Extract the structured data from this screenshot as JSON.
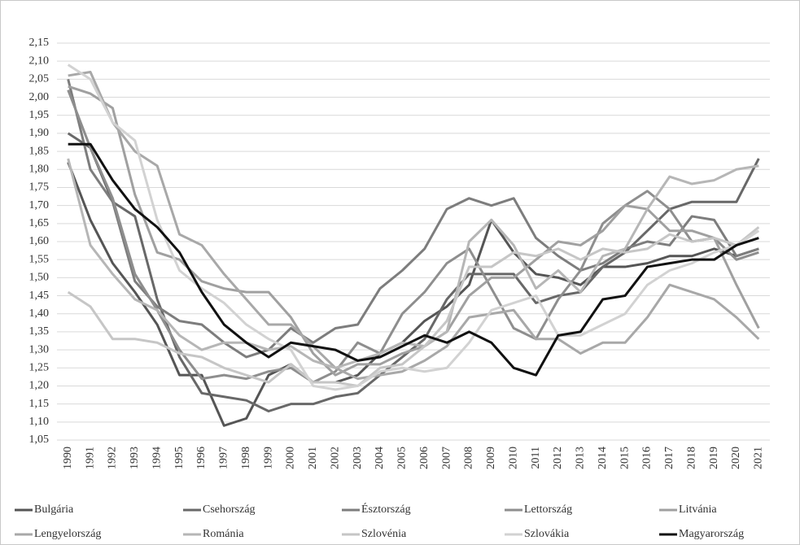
{
  "chart_data": {
    "type": "line",
    "categories": [
      "1990",
      "1991",
      "1992",
      "1993",
      "1994",
      "1995",
      "1996",
      "1997",
      "1998",
      "1999",
      "2000",
      "2001",
      "2002",
      "2003",
      "2004",
      "2005",
      "2006",
      "2007",
      "2008",
      "2009",
      "2010",
      "2011",
      "2012",
      "2013",
      "2014",
      "2015",
      "2016",
      "2017",
      "2018",
      "2019",
      "2020",
      "2021"
    ],
    "ylim": [
      1.05,
      2.15
    ],
    "yticks": [
      {
        "value": 1.05,
        "label": "1,05"
      },
      {
        "value": 1.1,
        "label": "1,10"
      },
      {
        "value": 1.15,
        "label": "1,15"
      },
      {
        "value": 1.2,
        "label": "1,20"
      },
      {
        "value": 1.25,
        "label": "1,25"
      },
      {
        "value": 1.3,
        "label": "1,30"
      },
      {
        "value": 1.35,
        "label": "1,35"
      },
      {
        "value": 1.4,
        "label": "1,40"
      },
      {
        "value": 1.45,
        "label": "1,45"
      },
      {
        "value": 1.5,
        "label": "1,50"
      },
      {
        "value": 1.55,
        "label": "1,55"
      },
      {
        "value": 1.6,
        "label": "1,60"
      },
      {
        "value": 1.65,
        "label": "1,65"
      },
      {
        "value": 1.7,
        "label": "1,70"
      },
      {
        "value": 1.75,
        "label": "1,75"
      },
      {
        "value": 1.8,
        "label": "1,80"
      },
      {
        "value": 1.85,
        "label": "1,85"
      },
      {
        "value": 1.9,
        "label": "1,90"
      },
      {
        "value": 1.95,
        "label": "1,95"
      },
      {
        "value": 2.0,
        "label": "2,00"
      },
      {
        "value": 2.05,
        "label": "2,05"
      },
      {
        "value": 2.1,
        "label": "2,10"
      },
      {
        "value": 2.15,
        "label": "2,15"
      }
    ],
    "grid": true,
    "legend": "bottom",
    "series": [
      {
        "name": "Bulgária",
        "color": "#555555",
        "values": [
          1.82,
          1.66,
          1.54,
          1.46,
          1.37,
          1.23,
          1.23,
          1.09,
          1.11,
          1.23,
          1.26,
          1.21,
          1.21,
          1.23,
          1.29,
          1.32,
          1.38,
          1.42,
          1.48,
          1.66,
          1.57,
          1.51,
          1.5,
          1.48,
          1.53,
          1.53,
          1.54,
          1.56,
          1.56,
          1.58,
          1.56,
          1.58
        ]
      },
      {
        "name": "Csehország",
        "color": "#686868",
        "values": [
          1.9,
          1.86,
          1.71,
          1.67,
          1.44,
          1.28,
          1.18,
          1.17,
          1.16,
          1.13,
          1.15,
          1.15,
          1.17,
          1.18,
          1.23,
          1.28,
          1.33,
          1.44,
          1.51,
          1.51,
          1.51,
          1.43,
          1.45,
          1.46,
          1.53,
          1.57,
          1.63,
          1.69,
          1.71,
          1.71,
          1.71,
          1.83
        ]
      },
      {
        "name": "Észtország",
        "color": "#7d7d7d",
        "values": [
          2.05,
          1.8,
          1.71,
          1.49,
          1.42,
          1.38,
          1.37,
          1.32,
          1.28,
          1.3,
          1.36,
          1.32,
          1.36,
          1.37,
          1.47,
          1.52,
          1.58,
          1.69,
          1.72,
          1.7,
          1.72,
          1.61,
          1.56,
          1.52,
          1.54,
          1.58,
          1.6,
          1.59,
          1.67,
          1.66,
          1.56,
          1.58
        ]
      },
      {
        "name": "Lettország",
        "color": "#8e8e8e",
        "values": [
          2.02,
          1.86,
          1.72,
          1.51,
          1.41,
          1.3,
          1.22,
          1.23,
          1.22,
          1.24,
          1.25,
          1.21,
          1.24,
          1.32,
          1.29,
          1.4,
          1.46,
          1.54,
          1.58,
          1.47,
          1.36,
          1.33,
          1.44,
          1.52,
          1.65,
          1.7,
          1.74,
          1.69,
          1.6,
          1.61,
          1.55,
          1.57
        ]
      },
      {
        "name": "Litvánia",
        "color": "#a0a0a0",
        "values": [
          2.03,
          2.01,
          1.97,
          1.73,
          1.57,
          1.55,
          1.49,
          1.47,
          1.46,
          1.46,
          1.39,
          1.29,
          1.23,
          1.26,
          1.26,
          1.29,
          1.31,
          1.35,
          1.45,
          1.5,
          1.5,
          1.55,
          1.6,
          1.59,
          1.63,
          1.7,
          1.69,
          1.63,
          1.63,
          1.61,
          1.48,
          1.36
        ]
      },
      {
        "name": "Lengyelország",
        "color": "#a8a8a8",
        "values": [
          2.06,
          2.07,
          1.93,
          1.85,
          1.81,
          1.62,
          1.59,
          1.51,
          1.44,
          1.37,
          1.37,
          1.31,
          1.25,
          1.22,
          1.23,
          1.24,
          1.27,
          1.31,
          1.39,
          1.4,
          1.41,
          1.33,
          1.33,
          1.29,
          1.32,
          1.32,
          1.39,
          1.48,
          1.46,
          1.44,
          1.39,
          1.33
        ]
      },
      {
        "name": "Románia",
        "color": "#b6b6b6",
        "values": [
          1.83,
          1.59,
          1.51,
          1.44,
          1.41,
          1.34,
          1.3,
          1.32,
          1.32,
          1.3,
          1.31,
          1.27,
          1.25,
          1.27,
          1.29,
          1.32,
          1.31,
          1.35,
          1.6,
          1.66,
          1.59,
          1.47,
          1.52,
          1.46,
          1.56,
          1.58,
          1.69,
          1.78,
          1.76,
          1.77,
          1.8,
          1.81
        ]
      },
      {
        "name": "Szlovénia",
        "color": "#c6c6c6",
        "values": [
          1.46,
          1.42,
          1.33,
          1.33,
          1.32,
          1.29,
          1.28,
          1.25,
          1.23,
          1.21,
          1.26,
          1.21,
          1.21,
          1.2,
          1.25,
          1.26,
          1.31,
          1.38,
          1.53,
          1.53,
          1.57,
          1.56,
          1.58,
          1.55,
          1.58,
          1.57,
          1.58,
          1.62,
          1.6,
          1.61,
          1.59,
          1.64
        ]
      },
      {
        "name": "Szlovákia",
        "color": "#d2d2d2",
        "values": [
          2.09,
          2.05,
          1.93,
          1.88,
          1.66,
          1.52,
          1.47,
          1.43,
          1.37,
          1.33,
          1.3,
          1.2,
          1.19,
          1.2,
          1.24,
          1.25,
          1.24,
          1.25,
          1.32,
          1.41,
          1.43,
          1.45,
          1.34,
          1.34,
          1.37,
          1.4,
          1.48,
          1.52,
          1.54,
          1.57,
          1.59,
          1.63
        ]
      },
      {
        "name": "Magyarország",
        "color": "#111111",
        "values": [
          1.87,
          1.87,
          1.77,
          1.69,
          1.64,
          1.57,
          1.46,
          1.37,
          1.32,
          1.28,
          1.32,
          1.31,
          1.3,
          1.27,
          1.28,
          1.31,
          1.34,
          1.32,
          1.35,
          1.32,
          1.25,
          1.23,
          1.34,
          1.35,
          1.44,
          1.45,
          1.53,
          1.54,
          1.55,
          1.55,
          1.59,
          1.61
        ]
      }
    ]
  }
}
